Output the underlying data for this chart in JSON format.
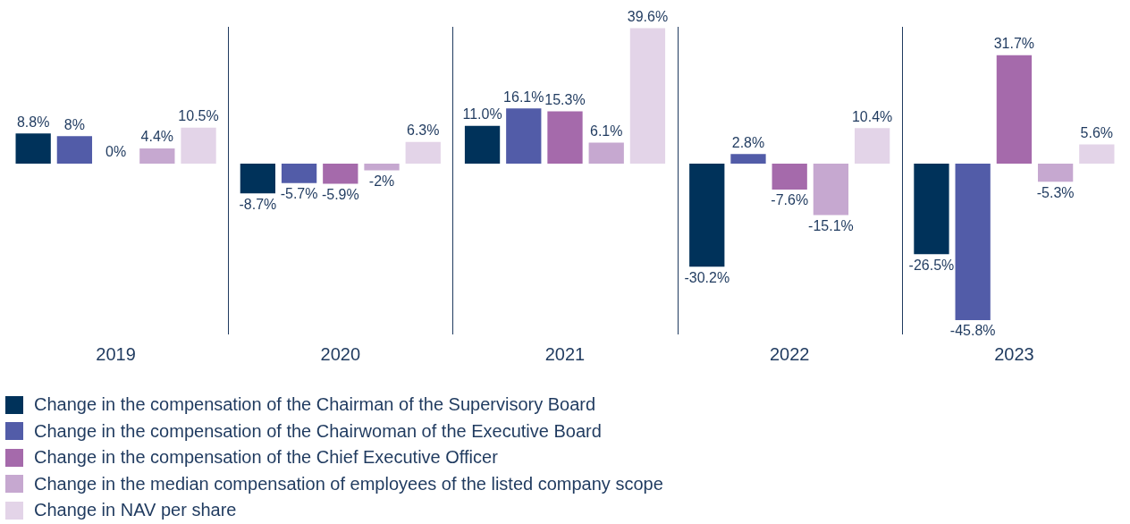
{
  "chart_data": {
    "type": "bar",
    "categories": [
      "2019",
      "2020",
      "2021",
      "2022",
      "2023"
    ],
    "legend": "bottom",
    "grid": false,
    "tick_labels": "x",
    "series": [
      {
        "name": "Change in the compensation of the Chairman of the Supervisory Board",
        "color": "#00325a",
        "values": [
          8.8,
          -8.7,
          11.0,
          -30.2,
          -26.5
        ],
        "value_labels": [
          "8.8%",
          "-8.7%",
          "11.0%",
          "-30.2%",
          "-26.5%"
        ]
      },
      {
        "name": "Change in the compensation of the Chairwoman of the Executive Board",
        "color": "#525ca8",
        "values": [
          8,
          -5.7,
          16.1,
          2.8,
          -45.8
        ],
        "value_labels": [
          "8%",
          "-5.7%",
          "16.1%",
          "2.8%",
          "-45.8%"
        ]
      },
      {
        "name": "Change in the compensation of the Chief Executive Officer",
        "color": "#a56aab",
        "values": [
          0,
          -5.9,
          15.3,
          -7.6,
          31.7
        ],
        "value_labels": [
          "0%",
          "-5.9%",
          "15.3%",
          "-7.6%",
          "31.7%"
        ]
      },
      {
        "name": "Change in the median compensation of employees of the listed company scope",
        "color": "#c6a8d0",
        "values": [
          4.4,
          -2,
          6.1,
          -15.1,
          -5.3
        ],
        "value_labels": [
          "4.4%",
          "-2%",
          "6.1%",
          "-15.1%",
          "-5.3%"
        ]
      },
      {
        "name": "Change in NAV per share",
        "color": "#e3d4e8",
        "values": [
          10.5,
          6.3,
          39.6,
          10.4,
          5.6
        ],
        "value_labels": [
          "10.5%",
          "6.3%",
          "39.6%",
          "10.4%",
          "5.6%"
        ]
      }
    ]
  }
}
